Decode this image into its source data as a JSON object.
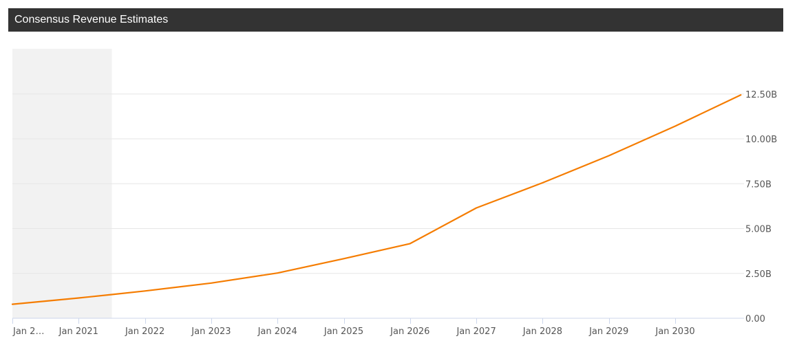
{
  "header": {
    "title": "Consensus Revenue Estimates"
  },
  "chart_data": {
    "type": "line",
    "title": "Consensus Revenue Estimates",
    "xlabel": "",
    "ylabel": "",
    "x_tick_labels": [
      "Jan 2…",
      "Jan 2021",
      "Jan 2022",
      "Jan 2023",
      "Jan 2024",
      "Jan 2025",
      "Jan 2026",
      "Jan 2027",
      "Jan 2028",
      "Jan 2029",
      "Jan 2030"
    ],
    "x_tick_values": [
      2020.0,
      2021.0,
      2022.0,
      2023.0,
      2024.0,
      2025.0,
      2026.0,
      2027.0,
      2028.0,
      2029.0,
      2030.0
    ],
    "y_tick_labels": [
      "0.00",
      "2.50B",
      "5.00B",
      "7.50B",
      "10.00B",
      "12.50B"
    ],
    "y_tick_values": [
      0,
      2.5,
      5.0,
      7.5,
      10.0,
      12.5
    ],
    "ylim": [
      0,
      15
    ],
    "xlim": [
      2020.0,
      2030.99
    ],
    "historical_range": [
      2020.0,
      2021.5
    ],
    "grid": true,
    "y_axis_side": "right",
    "line_color": "#f57c00",
    "series": [
      {
        "x": [
          2020.0,
          2021.0,
          2021.5,
          2022.0,
          2023.0,
          2024.0,
          2025.0,
          2026.0,
          2027.0,
          2028.0,
          2029.0,
          2030.0,
          2030.99
        ],
        "values": [
          0.78,
          1.13,
          1.32,
          1.52,
          1.96,
          2.52,
          3.32,
          4.16,
          6.15,
          7.55,
          9.06,
          10.71,
          12.45
        ]
      }
    ]
  }
}
